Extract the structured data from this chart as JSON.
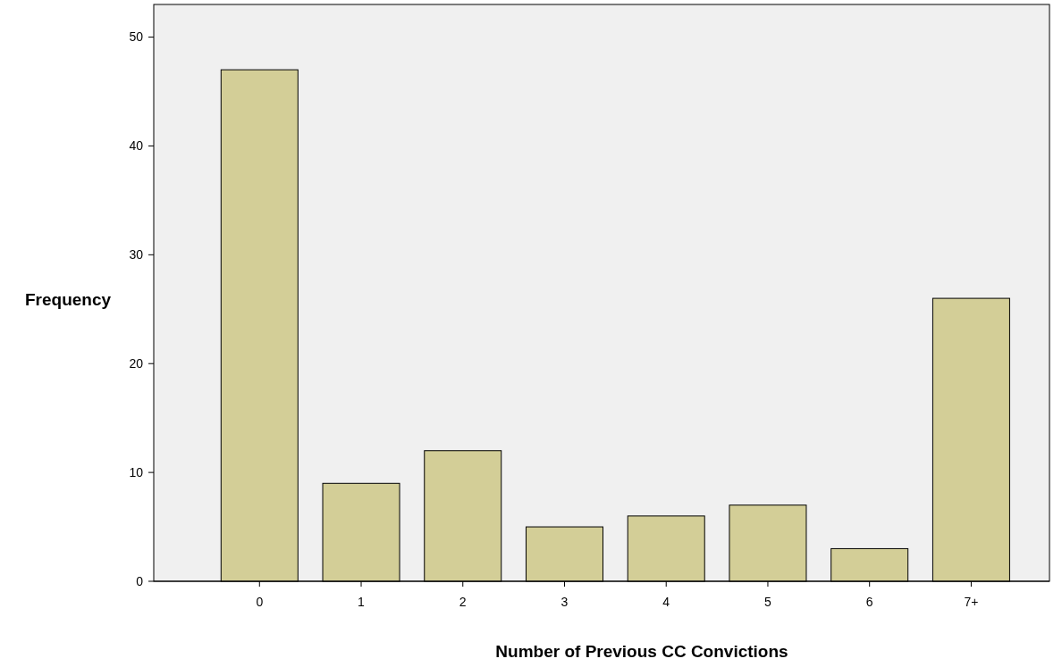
{
  "chart_data": {
    "type": "bar",
    "xlabel": "Number of Previous CC Convictions",
    "ylabel": "Frequency",
    "categories": [
      "0",
      "1",
      "2",
      "3",
      "4",
      "5",
      "6",
      "7+"
    ],
    "values": [
      47,
      9,
      12,
      5,
      6,
      7,
      3,
      26
    ],
    "color": "#d3ce97",
    "ylim": [
      0,
      53
    ],
    "yticks": [
      0,
      10,
      20,
      30,
      40,
      50
    ]
  }
}
